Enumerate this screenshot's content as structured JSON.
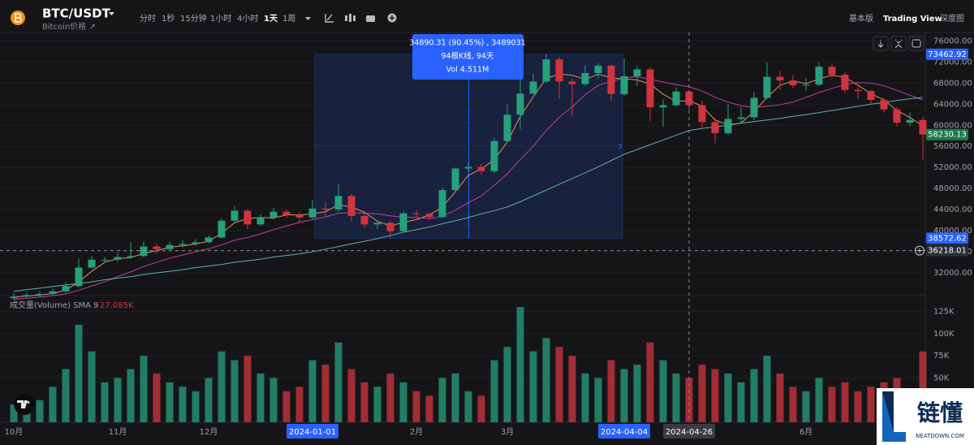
{
  "header": {
    "symbol": "BTC/USDT",
    "subtitle": "Bitcoin价格 ↗",
    "intervals": [
      "分时",
      "1秒",
      "15分钟",
      "1小时",
      "4小时",
      "1天",
      "1周"
    ],
    "active_interval": "1天",
    "views": [
      "基本版",
      "Trading View",
      "深度图"
    ],
    "active_view": "Trading View"
  },
  "chart_data": [
    {
      "type": "candlestick",
      "grid": true,
      "up_color": "#26a17b",
      "down_color": "#d0353f",
      "categories": [
        "10月",
        null,
        null,
        null,
        null,
        null,
        null,
        null,
        "11月",
        null,
        null,
        null,
        null,
        null,
        null,
        "12月",
        null,
        null,
        null,
        null,
        null,
        null,
        null,
        "2024-01-01",
        null,
        null,
        null,
        null,
        null,
        null,
        null,
        "2月",
        null,
        null,
        null,
        null,
        null,
        null,
        "3月",
        null,
        null,
        null,
        null,
        null,
        null,
        null,
        null,
        "2024-04-04",
        null,
        null,
        null,
        null,
        "2024-04-26",
        null,
        null,
        null,
        null,
        null,
        null,
        null,
        null,
        "6月",
        null,
        null,
        null,
        null,
        null,
        null,
        null,
        null,
        null
      ],
      "open": [
        27200,
        27500,
        27800,
        28000,
        28500,
        29500,
        33000,
        34500,
        34500,
        35000,
        35200,
        37000,
        36500,
        37300,
        37500,
        37800,
        38700,
        41900,
        43800,
        41200,
        42500,
        43600,
        43000,
        42500,
        44200,
        44000,
        46600,
        42800,
        41200,
        41500,
        39900,
        43300,
        43200,
        42600,
        47700,
        51800,
        52100,
        51300,
        57000,
        62000,
        66000,
        68300,
        72500,
        68300,
        67800,
        69900,
        71300,
        65900,
        69300,
        70600,
        63400,
        63800,
        66400,
        63800,
        60600,
        58500,
        61200,
        61500,
        65200,
        69200,
        68500,
        67600,
        67700,
        71100,
        69600,
        66700,
        66500,
        64800,
        63000,
        60500,
        61000
      ],
      "high": [
        28200,
        28300,
        28500,
        29000,
        30200,
        34700,
        35200,
        35000,
        35900,
        37900,
        37900,
        37600,
        37900,
        38200,
        38400,
        39100,
        42300,
        44700,
        44100,
        43100,
        44300,
        44000,
        43600,
        45900,
        45500,
        48900,
        47000,
        43200,
        41900,
        42000,
        43700,
        43900,
        43500,
        48200,
        52000,
        52800,
        52700,
        57600,
        64000,
        69000,
        69800,
        73500,
        73000,
        68900,
        71400,
        71800,
        71500,
        72700,
        71200,
        71000,
        64900,
        67200,
        66800,
        64700,
        61400,
        64000,
        63400,
        66400,
        71900,
        70300,
        69500,
        68900,
        71900,
        71700,
        70100,
        67200,
        66700,
        65200,
        63500,
        62400,
        61600
      ],
      "low": [
        26900,
        27200,
        27400,
        27700,
        28200,
        29300,
        32800,
        33900,
        34100,
        34700,
        35000,
        35600,
        36200,
        36900,
        37100,
        37600,
        38500,
        41600,
        40300,
        40900,
        42100,
        42500,
        41500,
        42200,
        42600,
        43600,
        41800,
        40600,
        40300,
        38600,
        39700,
        42300,
        42200,
        42400,
        47500,
        51200,
        50600,
        50900,
        56800,
        59300,
        65900,
        68000,
        65000,
        61700,
        67500,
        68800,
        64600,
        65500,
        67400,
        60800,
        59700,
        63600,
        62800,
        59200,
        56600,
        58200,
        60300,
        60900,
        65000,
        66700,
        67100,
        66600,
        67500,
        69000,
        66100,
        65100,
        63900,
        62400,
        59800,
        59800,
        53500
      ],
      "close": [
        27500,
        27800,
        28000,
        28500,
        29500,
        33000,
        34500,
        34500,
        35000,
        35200,
        37000,
        36500,
        37300,
        37500,
        37800,
        38700,
        41900,
        43800,
        41200,
        42500,
        43600,
        43000,
        42500,
        44200,
        44000,
        46600,
        42800,
        41200,
        41500,
        39900,
        43300,
        43200,
        42600,
        47700,
        51800,
        52100,
        51300,
        57000,
        62000,
        66000,
        68300,
        72500,
        68300,
        67800,
        69900,
        71300,
        65900,
        69300,
        70600,
        63400,
        63800,
        66400,
        63800,
        60600,
        58500,
        61200,
        61500,
        65200,
        69200,
        68500,
        67600,
        67700,
        71100,
        69600,
        66700,
        66500,
        64800,
        63000,
        60500,
        61000,
        58230
      ],
      "lines": [
        {
          "color": "#e0915a",
          "values": [
            27400,
            27600,
            27800,
            28100,
            28700,
            30300,
            32300,
            34000,
            34700,
            34900,
            35700,
            36200,
            36900,
            37100,
            37500,
            38000,
            39500,
            41500,
            42300,
            42500,
            42400,
            43000,
            43000,
            43200,
            43600,
            44900,
            44500,
            43500,
            41800,
            40900,
            41600,
            42100,
            43000,
            44500,
            47400,
            50500,
            51700,
            53500,
            56800,
            61700,
            65400,
            68900,
            69700,
            69500,
            68700,
            69700,
            69000,
            68800,
            68600,
            67800,
            65900,
            64500,
            64700,
            63600,
            61000,
            60100,
            60400,
            62600,
            65300,
            67600,
            68400,
            67900,
            68800,
            69500,
            69100,
            67600,
            66000,
            64800,
            62800,
            61500,
            59900
          ]
        },
        {
          "color": "#c2409e",
          "values": [
            27000,
            27200,
            27400,
            27700,
            28000,
            28700,
            29500,
            30300,
            31300,
            32200,
            33200,
            34000,
            34800,
            35400,
            36000,
            36600,
            37300,
            38200,
            38700,
            39400,
            40200,
            40900,
            41600,
            42100,
            42600,
            43300,
            43400,
            43300,
            43200,
            42800,
            42600,
            42500,
            42300,
            42700,
            43900,
            45300,
            46600,
            48600,
            50800,
            53500,
            56000,
            59000,
            61500,
            63500,
            65800,
            67600,
            68300,
            69000,
            69200,
            68700,
            68200,
            67700,
            67300,
            66500,
            65300,
            64400,
            63700,
            63400,
            63600,
            63900,
            64400,
            65300,
            66200,
            67000,
            67700,
            68100,
            68000,
            67500,
            66600,
            65700,
            64800
          ]
        },
        {
          "color": "#5fb3a6",
          "values": [
            28500,
            28800,
            29100,
            29400,
            29700,
            30000,
            30300,
            30700,
            31000,
            31300,
            31700,
            32000,
            32300,
            32600,
            33000,
            33300,
            33600,
            34000,
            34300,
            34600,
            35000,
            35300,
            35600,
            36000,
            36500,
            37000,
            37500,
            38000,
            38500,
            39100,
            39700,
            40200,
            40700,
            41300,
            41900,
            42500,
            43200,
            43800,
            44500,
            45500,
            46600,
            47700,
            48800,
            49900,
            51000,
            52100,
            53300,
            54500,
            55400,
            56300,
            57200,
            58100,
            59000,
            59400,
            59700,
            60000,
            60400,
            60700,
            61000,
            61300,
            61700,
            62000,
            62400,
            62800,
            63200,
            63600,
            64000,
            64300,
            64700,
            65000,
            65300
          ]
        }
      ],
      "ylim": [
        28000,
        77600
      ],
      "yticks": [
        {
          "value": 32000,
          "label": "32000.00"
        },
        {
          "value": 36000,
          "label": "36000.00"
        },
        {
          "value": 40000,
          "label": "40000.00"
        },
        {
          "value": 44000,
          "label": "44000.00"
        },
        {
          "value": 48000,
          "label": "48000.00"
        },
        {
          "value": 52000,
          "label": "52000.00"
        },
        {
          "value": 56000,
          "label": "56000.00"
        },
        {
          "value": 60000,
          "label": "60000.00"
        },
        {
          "value": 64000,
          "label": "64000.00"
        },
        {
          "value": 68000,
          "label": "68000.00"
        },
        {
          "value": 72000,
          "label": "72000.00"
        },
        {
          "value": 76000,
          "label": "76000.00"
        }
      ],
      "price_tags": [
        {
          "value": 73462.92,
          "color": "#2962ff"
        },
        {
          "value": 58230.13,
          "color": "#1f7a4f"
        },
        {
          "value": 38572.62,
          "color": "#2962ff"
        },
        {
          "value": 36218.01,
          "color": "#2a2e39"
        }
      ]
    },
    {
      "type": "bar",
      "title": "成交量(Volume) SMA 9",
      "sma_label": "27.085K",
      "values": [
        20000,
        18000,
        25000,
        40000,
        60000,
        110000,
        80000,
        45000,
        50000,
        60000,
        75000,
        55000,
        45000,
        40000,
        35000,
        50000,
        80000,
        70000,
        75000,
        55000,
        50000,
        35000,
        40000,
        70000,
        65000,
        90000,
        60000,
        45000,
        40000,
        55000,
        45000,
        35000,
        30000,
        50000,
        55000,
        35000,
        30000,
        70000,
        85000,
        130000,
        80000,
        95000,
        85000,
        75000,
        55000,
        50000,
        70000,
        60000,
        65000,
        90000,
        70000,
        55000,
        50000,
        65000,
        60000,
        55000,
        45000,
        60000,
        75000,
        55000,
        40000,
        35000,
        50000,
        40000,
        45000,
        35000,
        40000,
        45000,
        50000,
        35000,
        80000
      ],
      "ylim": [
        0,
        142000
      ],
      "yticks": [
        {
          "value": 50000,
          "label": "50K"
        },
        {
          "value": 75000,
          "label": "75K"
        },
        {
          "value": 100000,
          "label": "100K"
        },
        {
          "value": 125000,
          "label": "125K"
        }
      ]
    }
  ],
  "measure": {
    "lines": [
      "34890.31 (90.45%) , 3489031",
      "94根K线, 94天",
      "Vol 4.511M"
    ]
  },
  "logo": {
    "text": "链懂",
    "sub": "NEATDOWN.COM"
  }
}
